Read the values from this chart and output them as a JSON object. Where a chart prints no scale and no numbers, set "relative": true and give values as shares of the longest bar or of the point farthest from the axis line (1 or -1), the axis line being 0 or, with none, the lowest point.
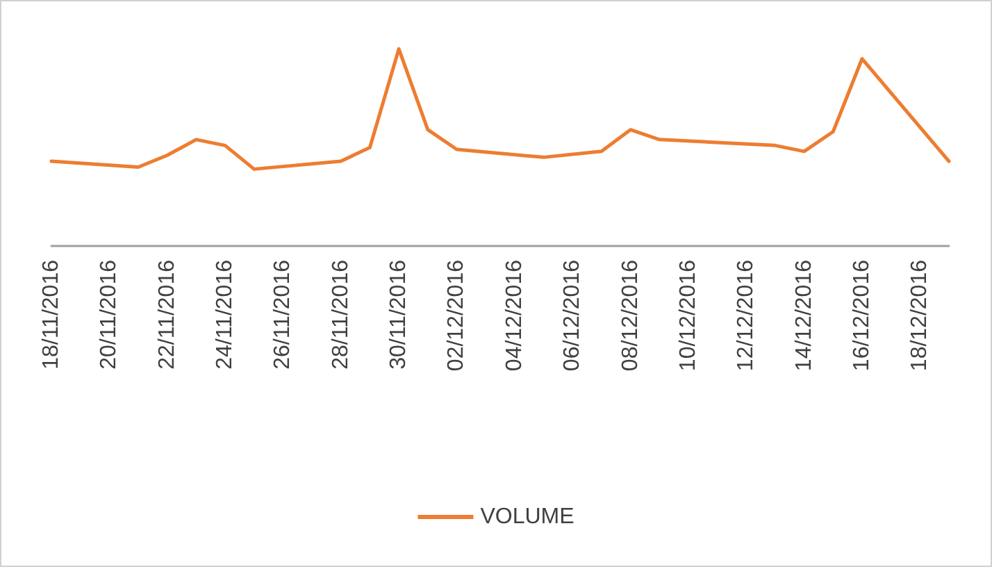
{
  "chart_data": {
    "type": "line",
    "relative": true,
    "x": [
      "2016-11-18",
      "2016-11-21",
      "2016-11-22",
      "2016-11-23",
      "2016-11-24",
      "2016-11-25",
      "2016-11-28",
      "2016-11-29",
      "2016-11-30",
      "2016-12-01",
      "2016-12-02",
      "2016-12-05",
      "2016-12-07",
      "2016-12-08",
      "2016-12-09",
      "2016-12-13",
      "2016-12-14",
      "2016-12-15",
      "2016-12-16",
      "2016-12-19"
    ],
    "series": [
      {
        "name": "VOLUME",
        "color": "#ed7d31",
        "values": [
          0.43,
          0.4,
          0.46,
          0.54,
          0.51,
          0.39,
          0.43,
          0.5,
          1,
          0.59,
          0.49,
          0.45,
          0.48,
          0.59,
          0.54,
          0.51,
          0.48,
          0.58,
          0.95,
          0.43
        ]
      }
    ],
    "xlim": [
      "2016-11-18",
      "2016-12-19"
    ],
    "xticks": [
      {
        "value": "2016-11-18",
        "label": "18/11/2016"
      },
      {
        "value": "2016-11-20",
        "label": "20/11/2016"
      },
      {
        "value": "2016-11-22",
        "label": "22/11/2016"
      },
      {
        "value": "2016-11-24",
        "label": "24/11/2016"
      },
      {
        "value": "2016-11-26",
        "label": "26/11/2016"
      },
      {
        "value": "2016-11-28",
        "label": "28/11/2016"
      },
      {
        "value": "2016-11-30",
        "label": "30/11/2016"
      },
      {
        "value": "2016-12-02",
        "label": "02/12/2016"
      },
      {
        "value": "2016-12-04",
        "label": "04/12/2016"
      },
      {
        "value": "2016-12-06",
        "label": "06/12/2016"
      },
      {
        "value": "2016-12-08",
        "label": "08/12/2016"
      },
      {
        "value": "2016-12-10",
        "label": "10/12/2016"
      },
      {
        "value": "2016-12-12",
        "label": "12/12/2016"
      },
      {
        "value": "2016-12-14",
        "label": "14/12/2016"
      },
      {
        "value": "2016-12-16",
        "label": "16/12/2016"
      },
      {
        "value": "2016-12-18",
        "label": "18/12/2016"
      }
    ],
    "grid": false,
    "legend": "bottom",
    "marker": "none",
    "line_style": "solid"
  }
}
